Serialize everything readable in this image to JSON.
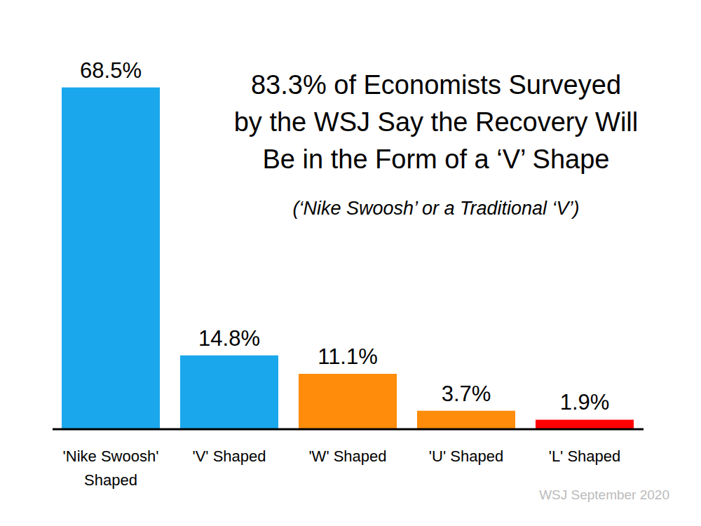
{
  "chart_data": {
    "type": "bar",
    "title": "83.3% of Economists Surveyed\nby the WSJ Say the Recovery Will\nBe in the Form of a ‘V’ Shape",
    "subtitle": "(‘Nike Swoosh’ or a Traditional ‘V’)",
    "source": "WSJ September 2020",
    "categories": [
      "'Nike Swoosh' Shaped",
      "'V' Shaped",
      "'W' Shaped",
      "'U' Shaped",
      "'L' Shaped"
    ],
    "values": [
      68.5,
      14.8,
      11.1,
      3.7,
      1.9
    ],
    "value_labels": [
      "68.5%",
      "14.8%",
      "11.1%",
      "3.7%",
      "1.9%"
    ],
    "colors": [
      "#1aa7ec",
      "#1aa7ec",
      "#ff8c0a",
      "#ff8c0a",
      "#ff0000"
    ],
    "ylim": [
      0,
      70
    ],
    "grid": false,
    "data_labels": true,
    "tick_labels": "x"
  }
}
